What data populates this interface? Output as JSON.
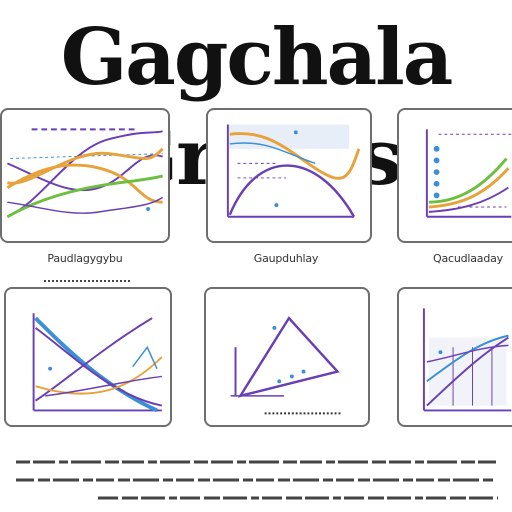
{
  "title": "Gagchala Grapss",
  "captions": [
    "Paudlagygybu",
    "Gaupduhlay",
    "Qacudlaaday"
  ],
  "colors": {
    "purple": "#6a3fb5",
    "orange": "#e8a23a",
    "green": "#6dbf3f",
    "blue": "#3a8fd6",
    "frame": "#6e6e6e",
    "text": "#111111"
  }
}
